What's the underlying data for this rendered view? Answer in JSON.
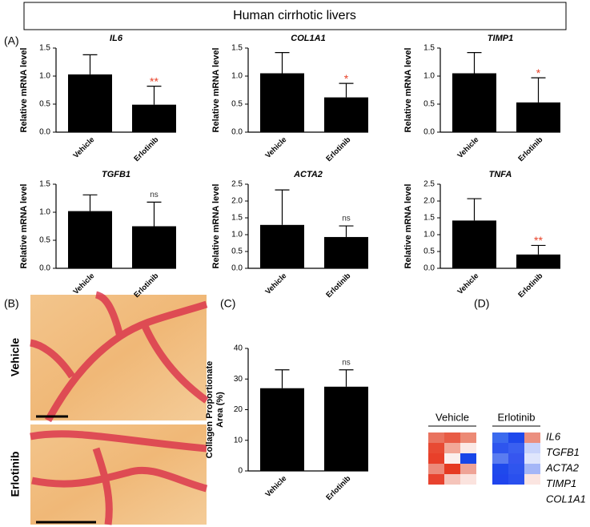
{
  "figure_title": "Human cirrhotic livers",
  "panel_labels": [
    "(A)",
    "(B)",
    "(C)",
    "(D)"
  ],
  "image_labels": [
    "Vehicle",
    "Erlotinib"
  ],
  "chart_data": [
    {
      "type": "bar",
      "title": "IL6",
      "ylabel": "Relative mRNA level",
      "categories": [
        "Vehicle",
        "Erlotinib"
      ],
      "values": [
        1.03,
        0.49
      ],
      "errors": [
        0.35,
        0.33
      ],
      "color": "#000000",
      "annotation": "**",
      "annotation_color": "#e8432a",
      "ylim": [
        0,
        1.5
      ],
      "yticks": [
        {
          "value": 0,
          "label": "0.0"
        },
        0.5,
        {
          "value": 1,
          "label": "1.0"
        },
        1.5
      ]
    },
    {
      "type": "bar",
      "title": "COL1A1",
      "ylabel": "Relative mRNA level",
      "categories": [
        "Vehicle",
        "Erlotinib"
      ],
      "values": [
        1.05,
        0.62
      ],
      "errors": [
        0.37,
        0.25
      ],
      "color": "#000000",
      "annotation": "*",
      "annotation_color": "#e8432a",
      "ylim": [
        0,
        1.5
      ],
      "yticks": [
        {
          "value": 0,
          "label": "0.0"
        },
        0.5,
        {
          "value": 1,
          "label": "1.0"
        },
        1.5
      ]
    },
    {
      "type": "bar",
      "title": "TIMP1",
      "ylabel": "Relative mRNA level",
      "categories": [
        "Vehicle",
        "Erlotinib"
      ],
      "values": [
        1.05,
        0.53
      ],
      "errors": [
        0.37,
        0.44
      ],
      "color": "#000000",
      "annotation": "*",
      "annotation_color": "#e8432a",
      "ylim": [
        0,
        1.5
      ],
      "yticks": [
        {
          "value": 0,
          "label": "0.0"
        },
        0.5,
        {
          "value": 1,
          "label": "1.0"
        },
        1.5
      ]
    },
    {
      "type": "bar",
      "title": "TGFB1",
      "ylabel": "Relative mRNA level",
      "categories": [
        "Vehicle",
        "Erlotinib"
      ],
      "values": [
        1.02,
        0.75
      ],
      "errors": [
        0.29,
        0.43
      ],
      "color": "#000000",
      "annotation": "ns",
      "annotation_color": "#333333",
      "ylim": [
        0,
        1.5
      ],
      "yticks": [
        {
          "value": 0,
          "label": "0.0"
        },
        0.5,
        {
          "value": 1,
          "label": "1.0"
        },
        1.5
      ]
    },
    {
      "type": "bar",
      "title": "ACTA2",
      "ylabel": "Relative mRNA level",
      "categories": [
        "Vehicle",
        "Erlotinib"
      ],
      "values": [
        1.29,
        0.93
      ],
      "errors": [
        1.04,
        0.33
      ],
      "color": "#000000",
      "annotation": "ns",
      "annotation_color": "#333333",
      "ylim": [
        0,
        2.5
      ],
      "yticks": [
        {
          "value": 0,
          "label": "0.0"
        },
        0.5,
        {
          "value": 1,
          "label": "1.0"
        },
        1.5,
        {
          "value": 2,
          "label": "2.0"
        },
        2.5
      ]
    },
    {
      "type": "bar",
      "title": "TNFA",
      "ylabel": "Relative mRNA level",
      "categories": [
        "Vehicle",
        "Erlotinib"
      ],
      "values": [
        1.42,
        0.41
      ],
      "errors": [
        0.65,
        0.27
      ],
      "color": "#000000",
      "annotation": "**",
      "annotation_color": "#e8432a",
      "ylim": [
        0,
        2.5
      ],
      "yticks": [
        {
          "value": 0,
          "label": "0.0"
        },
        0.5,
        {
          "value": 1,
          "label": "1.0"
        },
        1.5,
        {
          "value": 2,
          "label": "2.0"
        },
        2.5
      ]
    },
    {
      "type": "bar",
      "ylabel": [
        "Collagen Proportionate",
        "Area (%)"
      ],
      "categories": [
        "Vehicle",
        "Erlotinib"
      ],
      "values": [
        27,
        27.5
      ],
      "errors": [
        6,
        5.5
      ],
      "color": "#000000",
      "annotation": "ns",
      "annotation_color": "#333333",
      "ylim": [
        0,
        40
      ],
      "yticks": [
        0,
        10,
        20,
        30,
        40
      ]
    }
  ],
  "heatmap": {
    "groups": [
      "Vehicle",
      "Erlotinib"
    ],
    "genes": [
      "IL6",
      "TGFB1",
      "ACTA2",
      "TIMP1",
      "COL1A1"
    ],
    "colors": [
      [
        [
          "#e9735f",
          "#e85c46",
          "#ec8a75"
        ],
        [
          "#e84a33",
          "#f2a898",
          "#fbe9e6"
        ],
        [
          "#e8402a",
          "#fbf0ee",
          "#1846e8"
        ],
        [
          "#ec8a7a",
          "#e63a22",
          "#efa396"
        ],
        [
          "#e8432f",
          "#f5c4ba",
          "#fbe3de"
        ]
      ],
      [
        [
          "#3b6aee",
          "#1e48ec",
          "#eb8f7f"
        ],
        [
          "#2e55ee",
          "#3a5ff0",
          "#c8d3fb"
        ],
        [
          "#5a7cf0",
          "#3656ef",
          "#dfe5fc"
        ],
        [
          "#1f49ec",
          "#2f55ee",
          "#a4b6f7"
        ],
        [
          "#2045ed",
          "#2a50ee",
          "#fbe5e1"
        ]
      ]
    ]
  }
}
